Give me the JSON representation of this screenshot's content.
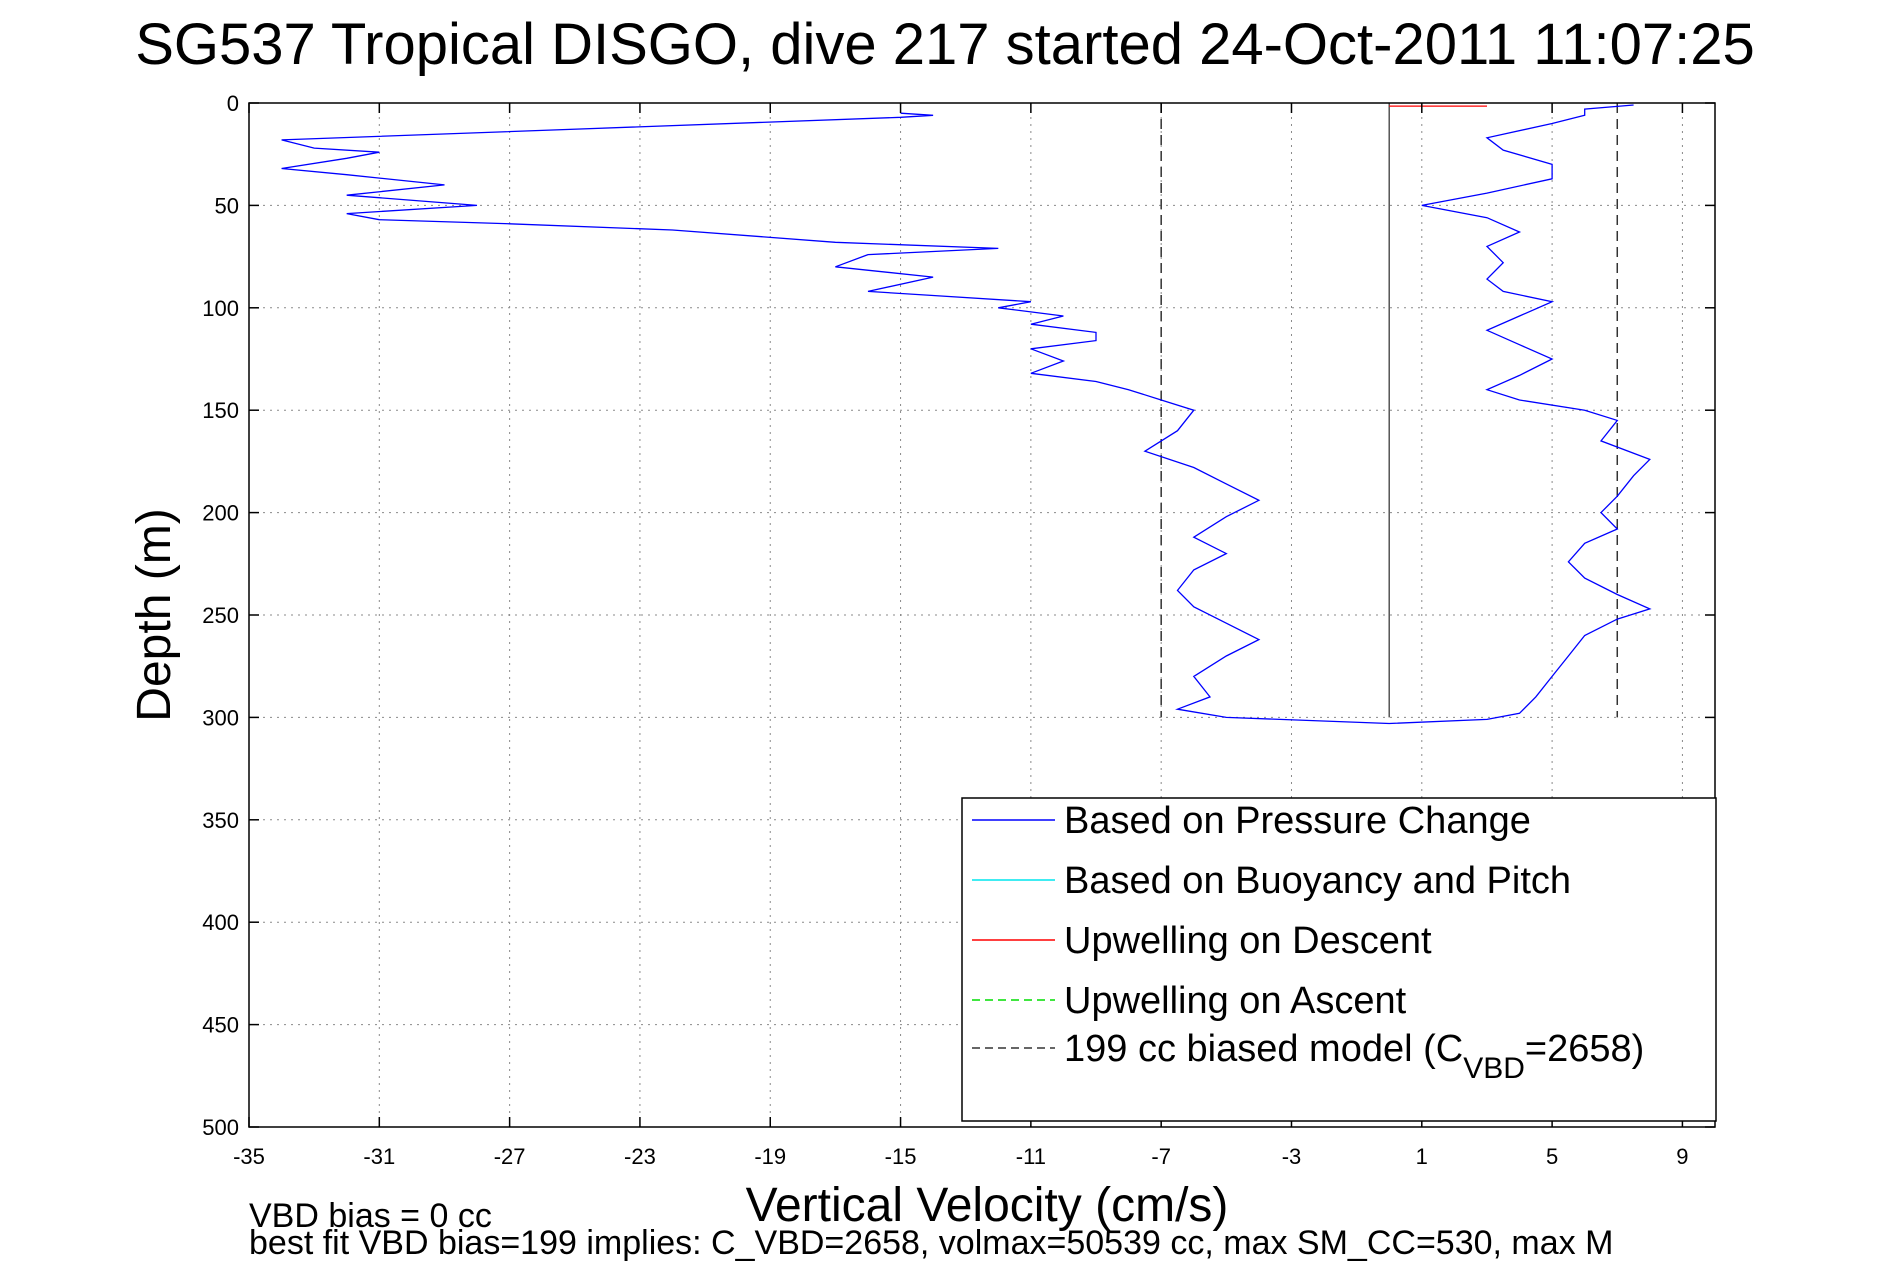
{
  "chart_data": {
    "type": "line",
    "title": "SG537 Tropical DISGO, dive 217 started 24-Oct-2011 11:07:25",
    "xlabel": "Vertical Velocity (cm/s)",
    "ylabel": "Depth (m)",
    "xlim": [
      -35,
      10
    ],
    "ylim": [
      0,
      500
    ],
    "y_reversed": true,
    "grid": true,
    "legend_position": "lower-right",
    "xticks": [
      -35,
      -31,
      -27,
      -23,
      -19,
      -15,
      -11,
      -7,
      -3,
      1,
      5,
      9
    ],
    "yticks": [
      0,
      50,
      100,
      150,
      200,
      250,
      300,
      350,
      400,
      450,
      500
    ],
    "reference_lines": [
      {
        "name": "199 cc biased model (C_VBD=2658)",
        "x": -7,
        "depth_range": [
          0,
          300
        ],
        "color": "#333333",
        "style": "dashed"
      },
      {
        "name": "199 cc biased model (C_VBD=2658)",
        "x": 7,
        "depth_range": [
          0,
          300
        ],
        "color": "#333333",
        "style": "dashed"
      },
      {
        "name": "zero",
        "x": 0,
        "depth_range": [
          0,
          300
        ],
        "color": "#555555",
        "style": "solid"
      }
    ],
    "series": [
      {
        "name": "Based on Pressure Change",
        "color": "#0000ff",
        "style": "solid",
        "points": [
          [
            -15,
            5
          ],
          [
            -14,
            6
          ],
          [
            -15,
            7
          ],
          [
            -34,
            18
          ],
          [
            -33,
            22
          ],
          [
            -31,
            24
          ],
          [
            -32,
            27
          ],
          [
            -34,
            32
          ],
          [
            -32,
            35
          ],
          [
            -29,
            40
          ],
          [
            -32,
            45
          ],
          [
            -28,
            50
          ],
          [
            -32,
            54
          ],
          [
            -31,
            57
          ],
          [
            -27,
            59
          ],
          [
            -22,
            62
          ],
          [
            -17,
            68
          ],
          [
            -12,
            71
          ],
          [
            -16,
            74
          ],
          [
            -17,
            80
          ],
          [
            -14,
            85
          ],
          [
            -16,
            92
          ],
          [
            -14,
            94
          ],
          [
            -11,
            97
          ],
          [
            -12,
            100
          ],
          [
            -10,
            104
          ],
          [
            -11,
            108
          ],
          [
            -9,
            112
          ],
          [
            -9,
            116
          ],
          [
            -11,
            120
          ],
          [
            -10,
            126
          ],
          [
            -11,
            132
          ],
          [
            -9,
            136
          ],
          [
            -8,
            140
          ],
          [
            -7,
            145
          ],
          [
            -6,
            150
          ],
          [
            -6.5,
            160
          ],
          [
            -7.5,
            170
          ],
          [
            -6,
            178
          ],
          [
            -5,
            186
          ],
          [
            -4,
            194
          ],
          [
            -5,
            202
          ],
          [
            -6,
            212
          ],
          [
            -5,
            220
          ],
          [
            -6,
            228
          ],
          [
            -6.5,
            238
          ],
          [
            -6,
            246
          ],
          [
            -5,
            254
          ],
          [
            -4,
            262
          ],
          [
            -5,
            270
          ],
          [
            -6,
            280
          ],
          [
            -5.5,
            290
          ],
          [
            -6.5,
            296
          ],
          [
            -5,
            300
          ],
          [
            0,
            303
          ],
          [
            3,
            301
          ],
          [
            4,
            298
          ],
          [
            4.5,
            290
          ],
          [
            5,
            280
          ],
          [
            5.5,
            270
          ],
          [
            6,
            260
          ],
          [
            7,
            252
          ],
          [
            8,
            247
          ],
          [
            7,
            240
          ],
          [
            6,
            232
          ],
          [
            5.5,
            224
          ],
          [
            6,
            215
          ],
          [
            7,
            208
          ],
          [
            6.5,
            200
          ],
          [
            7,
            192
          ],
          [
            7.5,
            182
          ],
          [
            8,
            174
          ],
          [
            6.5,
            165
          ],
          [
            7,
            155
          ],
          [
            6,
            150
          ],
          [
            4,
            145
          ],
          [
            3,
            140
          ],
          [
            4,
            133
          ],
          [
            5,
            125
          ],
          [
            4,
            118
          ],
          [
            3,
            111
          ],
          [
            4,
            104
          ],
          [
            5,
            97
          ],
          [
            3.5,
            92
          ],
          [
            3,
            86
          ],
          [
            3.5,
            78
          ],
          [
            3,
            70
          ],
          [
            4,
            63
          ],
          [
            3,
            56
          ],
          [
            1,
            50
          ],
          [
            3,
            44
          ],
          [
            5,
            37
          ],
          [
            5,
            30
          ],
          [
            3.5,
            23
          ],
          [
            3,
            17
          ],
          [
            5,
            10
          ],
          [
            6,
            6
          ],
          [
            6,
            3
          ],
          [
            7.5,
            1
          ]
        ]
      },
      {
        "name": "Based on Buoyancy and Pitch",
        "color": "#00e5ee",
        "style": "solid",
        "points": []
      },
      {
        "name": "Upwelling on Descent",
        "color": "#ff0000",
        "style": "solid",
        "points": [
          [
            0,
            1.5
          ],
          [
            3,
            1.5
          ]
        ]
      },
      {
        "name": "Upwelling on Ascent",
        "color": "#00dd00",
        "style": "dashed",
        "points": []
      }
    ],
    "legend": [
      {
        "label": "Based on Pressure Change",
        "color": "#0000ff",
        "style": "solid"
      },
      {
        "label": "Based on Buoyancy and Pitch",
        "color": "#00e5ee",
        "style": "solid"
      },
      {
        "label": "Upwelling on Descent",
        "color": "#ff0000",
        "style": "solid"
      },
      {
        "label": "Upwelling on Ascent",
        "color": "#00dd00",
        "style": "dashed"
      },
      {
        "label": "199 cc biased model (C",
        "sub": "VBD",
        "label_end": "=2658)",
        "color": "#333333",
        "style": "dashed"
      }
    ]
  },
  "footer": {
    "line1": "VBD bias = 0 cc",
    "line2": "best fit VBD bias=199 implies: C_VBD=2658, volmax=50539 cc, max SM_CC=530, max M"
  }
}
